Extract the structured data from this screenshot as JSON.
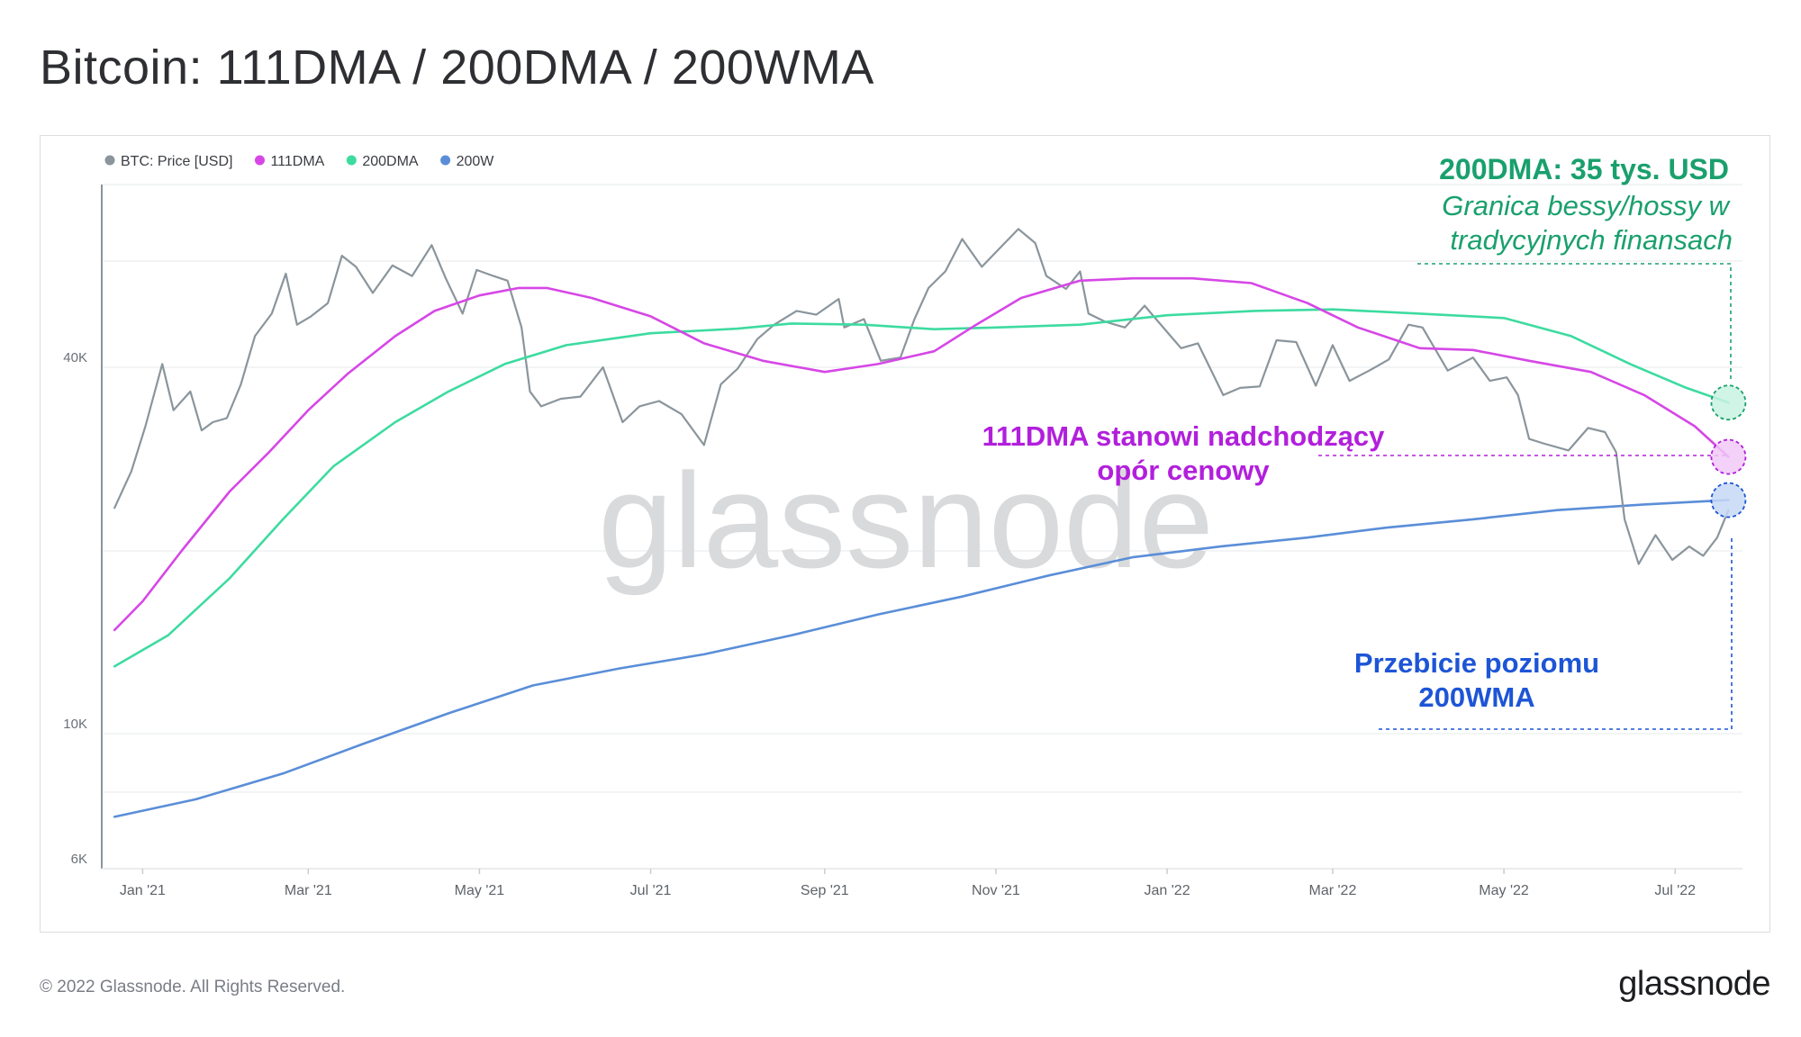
{
  "page": {
    "title": "Bitcoin: 111DMA / 200DMA / 200WMA",
    "copyright": "© 2022 Glassnode. All Rights Reserved.",
    "brand": "glassnode",
    "watermark": "glassnode"
  },
  "colors": {
    "price": "#8a959c",
    "dma111": "#d647e6",
    "dma200": "#3ddba0",
    "wma200": "#5a8ed8",
    "grid": "#eef0f2",
    "axis": "#8a959c"
  },
  "annotations": {
    "dma200_title": "200DMA: 35 tys. USD",
    "dma200_sub1": "Granica bessy/hossy w",
    "dma200_sub2": "tradycyjnych finansach",
    "dma111_line1": "111DMA stanowi nadchodzący",
    "dma111_line2": "opór cenowy",
    "wma200_line1": "Przebicie poziomu",
    "wma200_line2": "200WMA"
  },
  "chart_data": {
    "type": "line",
    "x_ticks": [
      "Jan '21",
      "Mar '21",
      "May '21",
      "Jul '21",
      "Sep '21",
      "Nov '21",
      "Jan '22",
      "Mar '22",
      "May '22",
      "Jul '22"
    ],
    "y_scale": "log",
    "y_ticks": [
      {
        "value": 6000,
        "label": "6K"
      },
      {
        "value": 10000,
        "label": "10K"
      },
      {
        "value": 40000,
        "label": "40K"
      }
    ],
    "ylim": [
      6000,
      95000
    ],
    "xlim": [
      "2020-12-20",
      "2022-07-25"
    ],
    "legend_position": "top-left",
    "grid": true,
    "series": [
      {
        "name": "BTC: Price [USD]",
        "color": "#8a959c",
        "points": [
          [
            "2020-12-22",
            23500
          ],
          [
            "2020-12-28",
            27000
          ],
          [
            "2021-01-02",
            32000
          ],
          [
            "2021-01-08",
            40500
          ],
          [
            "2021-01-12",
            34000
          ],
          [
            "2021-01-18",
            36500
          ],
          [
            "2021-01-22",
            31500
          ],
          [
            "2021-01-26",
            32500
          ],
          [
            "2021-01-31",
            33000
          ],
          [
            "2021-02-05",
            37500
          ],
          [
            "2021-02-10",
            45000
          ],
          [
            "2021-02-16",
            49000
          ],
          [
            "2021-02-21",
            57000
          ],
          [
            "2021-02-25",
            47000
          ],
          [
            "2021-03-02",
            48500
          ],
          [
            "2021-03-08",
            51000
          ],
          [
            "2021-03-13",
            61000
          ],
          [
            "2021-03-18",
            58500
          ],
          [
            "2021-03-24",
            53000
          ],
          [
            "2021-03-31",
            58800
          ],
          [
            "2021-04-07",
            56500
          ],
          [
            "2021-04-14",
            63500
          ],
          [
            "2021-04-19",
            56000
          ],
          [
            "2021-04-25",
            49000
          ],
          [
            "2021-04-30",
            57800
          ],
          [
            "2021-05-06",
            56500
          ],
          [
            "2021-05-11",
            55500
          ],
          [
            "2021-05-16",
            46500
          ],
          [
            "2021-05-19",
            36500
          ],
          [
            "2021-05-23",
            34500
          ],
          [
            "2021-05-30",
            35500
          ],
          [
            "2021-06-06",
            35800
          ],
          [
            "2021-06-14",
            40000
          ],
          [
            "2021-06-21",
            32500
          ],
          [
            "2021-06-27",
            34500
          ],
          [
            "2021-07-04",
            35200
          ],
          [
            "2021-07-12",
            33500
          ],
          [
            "2021-07-20",
            29800
          ],
          [
            "2021-07-26",
            37500
          ],
          [
            "2021-08-01",
            39800
          ],
          [
            "2021-08-08",
            44500
          ],
          [
            "2021-08-14",
            47000
          ],
          [
            "2021-08-22",
            49500
          ],
          [
            "2021-08-29",
            48800
          ],
          [
            "2021-09-06",
            51800
          ],
          [
            "2021-09-08",
            46500
          ],
          [
            "2021-09-15",
            48000
          ],
          [
            "2021-09-21",
            41000
          ],
          [
            "2021-09-28",
            41500
          ],
          [
            "2021-10-03",
            48000
          ],
          [
            "2021-10-08",
            54000
          ],
          [
            "2021-10-14",
            57500
          ],
          [
            "2021-10-20",
            65000
          ],
          [
            "2021-10-27",
            58500
          ],
          [
            "2021-11-02",
            62500
          ],
          [
            "2021-11-09",
            67500
          ],
          [
            "2021-11-15",
            64000
          ],
          [
            "2021-11-19",
            56500
          ],
          [
            "2021-11-26",
            53800
          ],
          [
            "2021-12-01",
            57500
          ],
          [
            "2021-12-04",
            49000
          ],
          [
            "2021-12-10",
            47500
          ],
          [
            "2021-12-17",
            46500
          ],
          [
            "2021-12-24",
            50500
          ],
          [
            "2021-12-31",
            46300
          ],
          [
            "2022-01-06",
            43000
          ],
          [
            "2022-01-12",
            43800
          ],
          [
            "2022-01-21",
            36000
          ],
          [
            "2022-01-27",
            37000
          ],
          [
            "2022-02-03",
            37200
          ],
          [
            "2022-02-09",
            44300
          ],
          [
            "2022-02-16",
            44000
          ],
          [
            "2022-02-23",
            37300
          ],
          [
            "2022-03-01",
            43500
          ],
          [
            "2022-03-07",
            38000
          ],
          [
            "2022-03-14",
            39500
          ],
          [
            "2022-03-21",
            41200
          ],
          [
            "2022-03-28",
            47000
          ],
          [
            "2022-04-02",
            46500
          ],
          [
            "2022-04-11",
            39500
          ],
          [
            "2022-04-20",
            41500
          ],
          [
            "2022-04-26",
            38000
          ],
          [
            "2022-05-02",
            38500
          ],
          [
            "2022-05-06",
            36000
          ],
          [
            "2022-05-10",
            30500
          ],
          [
            "2022-05-15",
            30000
          ],
          [
            "2022-05-24",
            29200
          ],
          [
            "2022-05-31",
            31800
          ],
          [
            "2022-06-06",
            31300
          ],
          [
            "2022-06-10",
            29000
          ],
          [
            "2022-06-13",
            22500
          ],
          [
            "2022-06-18",
            19000
          ],
          [
            "2022-06-24",
            21200
          ],
          [
            "2022-06-30",
            19300
          ],
          [
            "2022-07-06",
            20300
          ],
          [
            "2022-07-11",
            19600
          ],
          [
            "2022-07-16",
            21000
          ],
          [
            "2022-07-20",
            23300
          ]
        ]
      },
      {
        "name": "111DMA",
        "color": "#d647e6",
        "points": [
          [
            "2020-12-22",
            14800
          ],
          [
            "2021-01-01",
            16500
          ],
          [
            "2021-01-15",
            20000
          ],
          [
            "2021-02-01",
            25000
          ],
          [
            "2021-02-15",
            29000
          ],
          [
            "2021-03-01",
            34000
          ],
          [
            "2021-03-15",
            39000
          ],
          [
            "2021-04-01",
            45000
          ],
          [
            "2021-04-15",
            49500
          ],
          [
            "2021-05-01",
            52500
          ],
          [
            "2021-05-15",
            54000
          ],
          [
            "2021-05-25",
            54000
          ],
          [
            "2021-06-10",
            52000
          ],
          [
            "2021-07-01",
            48500
          ],
          [
            "2021-07-20",
            43800
          ],
          [
            "2021-08-10",
            41000
          ],
          [
            "2021-09-01",
            39300
          ],
          [
            "2021-09-20",
            40500
          ],
          [
            "2021-10-10",
            42500
          ],
          [
            "2021-10-25",
            47000
          ],
          [
            "2021-11-10",
            52000
          ],
          [
            "2021-12-01",
            55500
          ],
          [
            "2021-12-20",
            56000
          ],
          [
            "2022-01-10",
            56000
          ],
          [
            "2022-01-31",
            55000
          ],
          [
            "2022-02-20",
            51000
          ],
          [
            "2022-03-10",
            46500
          ],
          [
            "2022-04-01",
            43000
          ],
          [
            "2022-04-20",
            42700
          ],
          [
            "2022-05-10",
            41000
          ],
          [
            "2022-06-01",
            39300
          ],
          [
            "2022-06-20",
            36000
          ],
          [
            "2022-07-08",
            32000
          ],
          [
            "2022-07-20",
            28500
          ]
        ]
      },
      {
        "name": "200DMA",
        "color": "#3ddba0",
        "points": [
          [
            "2020-12-22",
            12900
          ],
          [
            "2021-01-10",
            14500
          ],
          [
            "2021-02-01",
            18000
          ],
          [
            "2021-02-20",
            22500
          ],
          [
            "2021-03-10",
            27500
          ],
          [
            "2021-04-01",
            32500
          ],
          [
            "2021-04-20",
            36500
          ],
          [
            "2021-05-10",
            40500
          ],
          [
            "2021-06-01",
            43500
          ],
          [
            "2021-07-01",
            45500
          ],
          [
            "2021-08-01",
            46300
          ],
          [
            "2021-08-20",
            47200
          ],
          [
            "2021-09-15",
            47000
          ],
          [
            "2021-10-10",
            46200
          ],
          [
            "2021-11-01",
            46500
          ],
          [
            "2021-12-01",
            47000
          ],
          [
            "2022-01-01",
            48700
          ],
          [
            "2022-02-01",
            49500
          ],
          [
            "2022-03-01",
            49800
          ],
          [
            "2022-04-01",
            49000
          ],
          [
            "2022-05-01",
            48200
          ],
          [
            "2022-05-25",
            45000
          ],
          [
            "2022-06-15",
            40500
          ],
          [
            "2022-07-05",
            37000
          ],
          [
            "2022-07-20",
            35000
          ]
        ]
      },
      {
        "name": "200W",
        "color": "#5a8ed8",
        "points": [
          [
            "2020-12-22",
            7300
          ],
          [
            "2021-01-20",
            7800
          ],
          [
            "2021-02-20",
            8600
          ],
          [
            "2021-03-20",
            9600
          ],
          [
            "2021-04-20",
            10800
          ],
          [
            "2021-05-20",
            12000
          ],
          [
            "2021-06-20",
            12800
          ],
          [
            "2021-07-20",
            13500
          ],
          [
            "2021-08-20",
            14500
          ],
          [
            "2021-09-20",
            15700
          ],
          [
            "2021-10-20",
            16800
          ],
          [
            "2021-11-20",
            18200
          ],
          [
            "2021-12-20",
            19500
          ],
          [
            "2022-01-20",
            20300
          ],
          [
            "2022-02-20",
            21000
          ],
          [
            "2022-03-20",
            21800
          ],
          [
            "2022-04-20",
            22500
          ],
          [
            "2022-05-20",
            23300
          ],
          [
            "2022-06-20",
            23800
          ],
          [
            "2022-07-20",
            24200
          ]
        ]
      }
    ]
  }
}
